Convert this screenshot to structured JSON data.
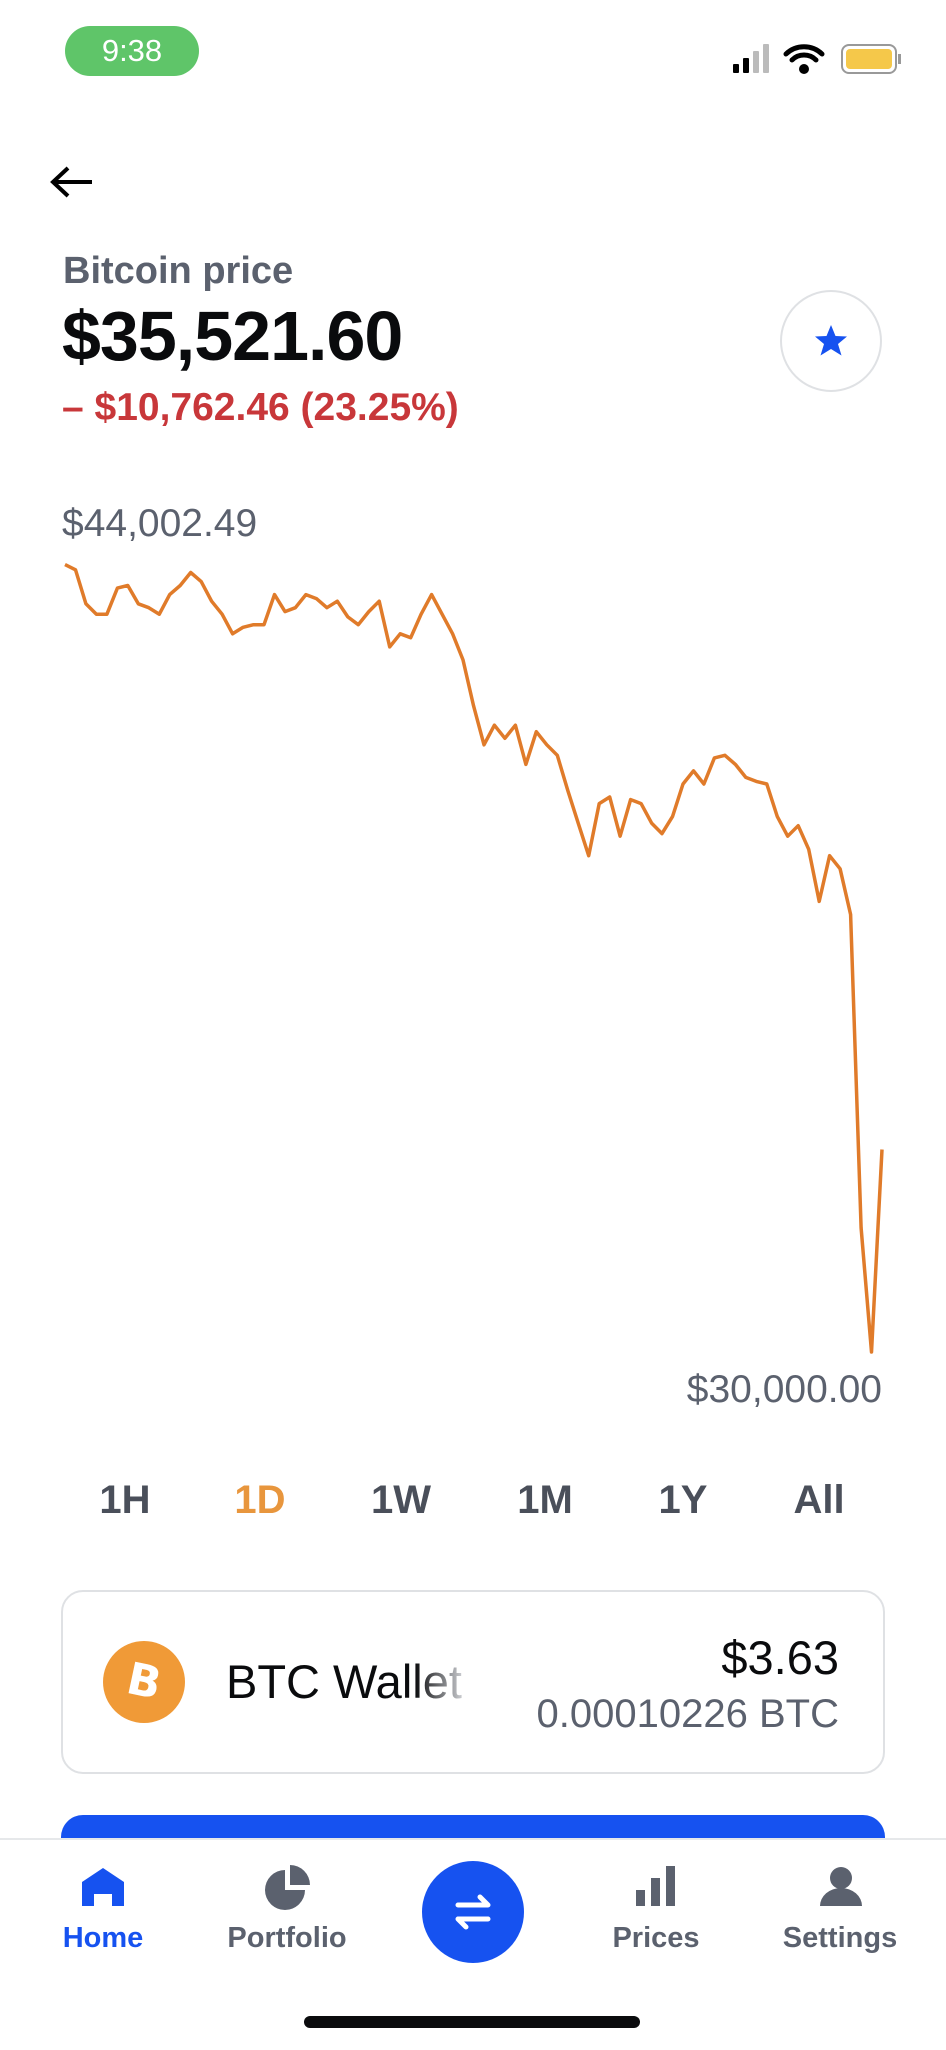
{
  "status_bar": {
    "time": "9:38"
  },
  "header": {
    "title": "Bitcoin price",
    "price": "$35,521.60",
    "change": "– $10,762.46 (23.25%)"
  },
  "chart_data": {
    "type": "line",
    "color": "#e07b2a",
    "values": [
      43956,
      43864,
      43262,
      43077,
      43077,
      43540,
      43586,
      43262,
      43192,
      43077,
      43424,
      43586,
      43817,
      43655,
      43308,
      43077,
      42730,
      42845,
      42892,
      42892,
      43424,
      43123,
      43192,
      43424,
      43354,
      43192,
      43308,
      43030,
      42892,
      43123,
      43308,
      42498,
      42730,
      42660,
      43077,
      43424,
      43077,
      42730,
      42267,
      41457,
      40762,
      41110,
      40878,
      41110,
      40415,
      40994,
      40762,
      40577,
      39953,
      39374,
      38796,
      39721,
      39837,
      39143,
      39791,
      39721,
      39374,
      39189,
      39490,
      40068,
      40300,
      40068,
      40531,
      40577,
      40415,
      40184,
      40114,
      40068,
      39490,
      39143,
      39328,
      38911,
      37986,
      38796,
      38564,
      37754,
      32201,
      30000,
      33589
    ],
    "ylim": [
      30000,
      44002.49
    ],
    "yticks": [
      {
        "value": 44002.49,
        "label": "$44,002.49"
      },
      {
        "value": 30000,
        "label": "$30,000.00"
      }
    ]
  },
  "time_ranges": {
    "options": [
      "1H",
      "1D",
      "1W",
      "1M",
      "1Y",
      "All"
    ],
    "selected": 1
  },
  "wallet": {
    "name": "BTC Wallet",
    "fiat_balance": "$3.63",
    "crypto_balance": "0.00010226 BTC"
  },
  "nav": {
    "items": [
      "Home",
      "Portfolio",
      "Prices",
      "Settings"
    ],
    "selected": 0
  }
}
